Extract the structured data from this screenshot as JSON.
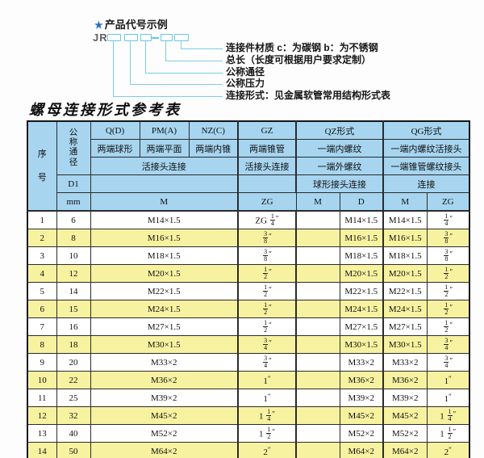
{
  "colors": {
    "header_blue": "#a7d5f0",
    "row_yellow": "#f7f2a0",
    "line_cyan": "#67c6e3",
    "star_blue": "#2e6fc0"
  },
  "diagram": {
    "star_icon": "★",
    "heading": "产品代号示例",
    "code_prefix": "JR",
    "labels": [
      "连接件材质  c：为碳钢  b：为不锈钢",
      "总长（长度可根据用户要求定制）",
      "公称通径",
      "公称压力",
      "连接形式：见金属软管常用结构形式表"
    ]
  },
  "table": {
    "title": "螺母连接形式参考表",
    "header": {
      "seq": "序号",
      "dn": "公称通径",
      "d1": "D1",
      "mm": "mm",
      "q": "Q(D)",
      "pm": "PM(A)",
      "nz": "NZ(C)",
      "gz": "GZ",
      "qz": "QZ形式",
      "qg": "QG形式",
      "q_desc": "两端球形",
      "pm_desc": "两端平面",
      "nz_desc": "两端内锥",
      "gz_desc": "两端锥管",
      "qz_desc1": "一端内螺纹",
      "qg_desc1": "一端内螺纹活接头",
      "left_joint": "活接头连接",
      "gz_joint": "活接头连接",
      "qz_desc2": "一端外螺纹",
      "qg_desc2": "一端锥管螺纹接头",
      "qz_desc3": "球形接头连接",
      "qg_desc3": "连接",
      "m": "M",
      "zg": "ZG",
      "qz_m": "M",
      "qz_d": "D",
      "qg_m": "M",
      "qg_zg": "ZG"
    },
    "rows": [
      {
        "seq": "1",
        "dn": "6",
        "m": "M14×1.5",
        "gz": "ZG 1/4″",
        "qz_m": "",
        "qz_d": "M14×1.5",
        "qg_m": "M14×1.5",
        "qg_zg": "1/4″"
      },
      {
        "seq": "2",
        "dn": "8",
        "m": "M16×1.5",
        "gz": "3/8″",
        "qz_m": "",
        "qz_d": "M16×1.5",
        "qg_m": "M16×1.5",
        "qg_zg": "3/8″"
      },
      {
        "seq": "3",
        "dn": "10",
        "m": "M18×1.5",
        "gz": "3/8″",
        "qz_m": "",
        "qz_d": "M18×1.5",
        "qg_m": "M18×1.5",
        "qg_zg": "3/8″"
      },
      {
        "seq": "4",
        "dn": "12",
        "m": "M20×1.5",
        "gz": "1/2″",
        "qz_m": "",
        "qz_d": "M20×1.5",
        "qg_m": "M20×1.5",
        "qg_zg": "1/2″"
      },
      {
        "seq": "5",
        "dn": "14",
        "m": "M22×1.5",
        "gz": "1/2″",
        "qz_m": "",
        "qz_d": "M22×1.5",
        "qg_m": "M22×1.5",
        "qg_zg": "1/2″"
      },
      {
        "seq": "6",
        "dn": "15",
        "m": "M24×1.5",
        "gz": "1/2″",
        "qz_m": "",
        "qz_d": "M24×1.5",
        "qg_m": "M24×1.5",
        "qg_zg": "1/2″"
      },
      {
        "seq": "7",
        "dn": "16",
        "m": "M27×1.5",
        "gz": "1/2″",
        "qz_m": "",
        "qz_d": "M27×1.5",
        "qg_m": "M27×1.5",
        "qg_zg": "1/2″"
      },
      {
        "seq": "8",
        "dn": "18",
        "m": "M30×1.5",
        "gz": "3/4″",
        "qz_m": "",
        "qz_d": "M30×1.5",
        "qg_m": "M30×1.5",
        "qg_zg": "3/4″"
      },
      {
        "seq": "9",
        "dn": "20",
        "m": "M33×2",
        "gz": "3/4″",
        "qz_m": "",
        "qz_d": "M33×2",
        "qg_m": "M33×2",
        "qg_zg": "3/4″"
      },
      {
        "seq": "10",
        "dn": "22",
        "m": "M36×2",
        "gz": "1″",
        "qz_m": "",
        "qz_d": "M36×2",
        "qg_m": "M36×2",
        "qg_zg": "1″"
      },
      {
        "seq": "11",
        "dn": "25",
        "m": "M39×2",
        "gz": "1″",
        "qz_m": "",
        "qz_d": "M39×2",
        "qg_m": "M39×2",
        "qg_zg": "1″"
      },
      {
        "seq": "12",
        "dn": "32",
        "m": "M45×2",
        "gz": "1 1/4″",
        "qz_m": "",
        "qz_d": "M45×2",
        "qg_m": "M45×2",
        "qg_zg": "1 1/4″"
      },
      {
        "seq": "13",
        "dn": "40",
        "m": "M52×2",
        "gz": "1 1/2″",
        "qz_m": "",
        "qz_d": "M52×2",
        "qg_m": "M52×2",
        "qg_zg": "1 1/2″"
      },
      {
        "seq": "14",
        "dn": "50",
        "m": "M64×2",
        "gz": "2″",
        "qz_m": "",
        "qz_d": "M64×2",
        "qg_m": "M64×2",
        "qg_zg": "2″"
      }
    ]
  }
}
